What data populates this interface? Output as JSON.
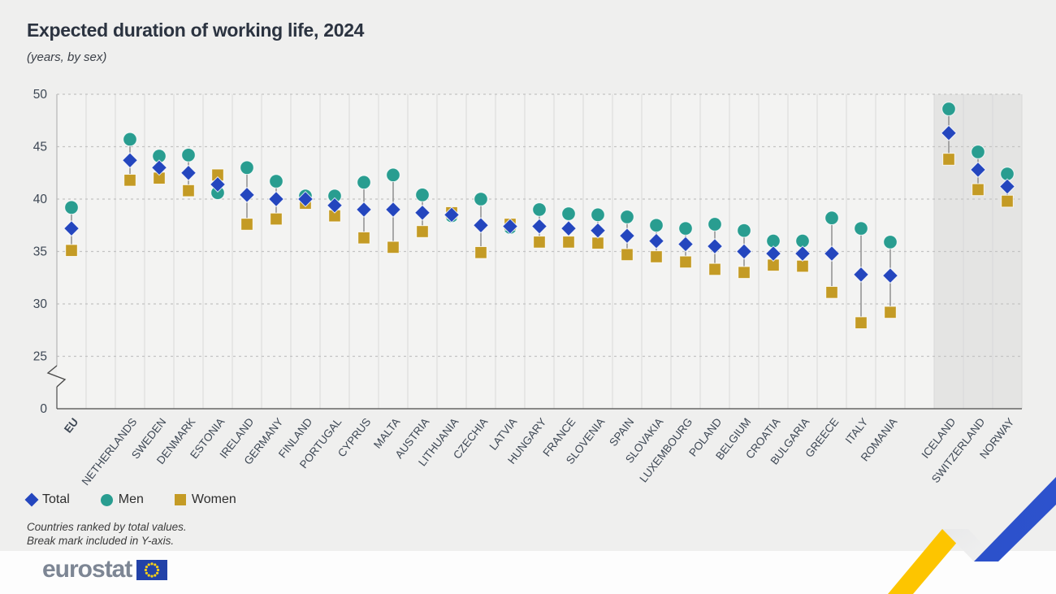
{
  "header": {
    "title": "Expected duration of working life, 2024",
    "subtitle": "(years, by sex)"
  },
  "legend": [
    {
      "label": "Total",
      "marker": "diamond",
      "color": "#2446BE"
    },
    {
      "label": "Men",
      "marker": "circle",
      "color": "#299D90"
    },
    {
      "label": "Women",
      "marker": "square",
      "color": "#C49B25"
    }
  ],
  "notes": {
    "line1": "Countries ranked by total values.",
    "line2": "Break mark included in Y-axis."
  },
  "footer": {
    "logo_text": "eurostat"
  },
  "colors": {
    "total": "#2446BE",
    "men": "#299D90",
    "women": "#C49B25",
    "connector": "#8f8f8f",
    "grid": "#c3c3c3",
    "column_line": "#d8d8d8",
    "plot_bg": "#f3f3f2",
    "shaded_bg": "#e4e4e3",
    "axis_light": "#b5b5b5",
    "axis_dark": "#4a4a4a",
    "tick_text": "#3d4754",
    "flag_blue": "#2242a8",
    "flag_stars": "#f7d117"
  },
  "chart_data": {
    "type": "scatter",
    "title": "Expected duration of working life, 2024",
    "subtitle": "(years, by sex)",
    "ylabel": "years",
    "yticks": [
      0,
      25,
      30,
      35,
      40,
      45,
      50
    ],
    "ylim": [
      0,
      50
    ],
    "y_axis_break": true,
    "grid": "horizontal-dashed",
    "legend_position": "bottom-left",
    "series_names": [
      "Total",
      "Men",
      "Women"
    ],
    "categories": [
      {
        "label": "EU",
        "bold": true,
        "total": 37.2,
        "men": 39.2,
        "women": 35.1
      },
      {
        "spacer": true
      },
      {
        "label": "NETHERLANDS",
        "total": 43.7,
        "men": 45.7,
        "women": 41.8
      },
      {
        "label": "SWEDEN",
        "total": 43.0,
        "men": 44.1,
        "women": 42.0
      },
      {
        "label": "DENMARK",
        "total": 42.5,
        "men": 44.2,
        "women": 40.8
      },
      {
        "label": "ESTONIA",
        "total": 41.4,
        "men": 40.6,
        "women": 42.3
      },
      {
        "label": "IRELAND",
        "total": 40.4,
        "men": 43.0,
        "women": 37.6
      },
      {
        "label": "GERMANY",
        "total": 40.0,
        "men": 41.7,
        "women": 38.1
      },
      {
        "label": "FINLAND",
        "total": 40.0,
        "men": 40.3,
        "women": 39.6
      },
      {
        "label": "PORTUGAL",
        "total": 39.4,
        "men": 40.3,
        "women": 38.4
      },
      {
        "label": "CYPRUS",
        "total": 39.0,
        "men": 41.6,
        "women": 36.3
      },
      {
        "label": "MALTA",
        "total": 39.0,
        "men": 42.3,
        "women": 35.4
      },
      {
        "label": "AUSTRIA",
        "total": 38.7,
        "men": 40.4,
        "women": 36.9
      },
      {
        "label": "LITHUANIA",
        "total": 38.5,
        "men": 38.4,
        "women": 38.7
      },
      {
        "label": "CZECHIA",
        "total": 37.5,
        "men": 40.0,
        "women": 34.9
      },
      {
        "label": "LATVIA",
        "total": 37.4,
        "men": 37.3,
        "women": 37.6
      },
      {
        "label": "HUNGARY",
        "total": 37.4,
        "men": 39.0,
        "women": 35.9
      },
      {
        "label": "FRANCE",
        "total": 37.2,
        "men": 38.6,
        "women": 35.9
      },
      {
        "label": "SLOVENIA",
        "total": 37.0,
        "men": 38.5,
        "women": 35.8
      },
      {
        "label": "SPAIN",
        "total": 36.5,
        "men": 38.3,
        "women": 34.7
      },
      {
        "label": "SLOVAKIA",
        "total": 36.0,
        "men": 37.5,
        "women": 34.5
      },
      {
        "label": "LUXEMBOURG",
        "total": 35.7,
        "men": 37.2,
        "women": 34.0
      },
      {
        "label": "POLAND",
        "total": 35.5,
        "men": 37.6,
        "women": 33.3
      },
      {
        "label": "BELGIUM",
        "total": 35.0,
        "men": 37.0,
        "women": 33.0
      },
      {
        "label": "CROATIA",
        "total": 34.8,
        "men": 36.0,
        "women": 33.7
      },
      {
        "label": "BULGARIA",
        "total": 34.8,
        "men": 36.0,
        "women": 33.6
      },
      {
        "label": "GREECE",
        "total": 34.8,
        "men": 38.2,
        "women": 31.1
      },
      {
        "label": "ITALY",
        "total": 32.8,
        "men": 37.2,
        "women": 28.2
      },
      {
        "label": "ROMANIA",
        "total": 32.7,
        "men": 35.9,
        "women": 29.2
      },
      {
        "spacer": true
      },
      {
        "label": "ICELAND",
        "shaded": true,
        "total": 46.3,
        "men": 48.6,
        "women": 43.8
      },
      {
        "label": "SWITZERLAND",
        "shaded": true,
        "total": 42.8,
        "men": 44.5,
        "women": 40.9
      },
      {
        "label": "NORWAY",
        "shaded": true,
        "total": 41.2,
        "men": 42.4,
        "women": 39.8
      }
    ]
  }
}
